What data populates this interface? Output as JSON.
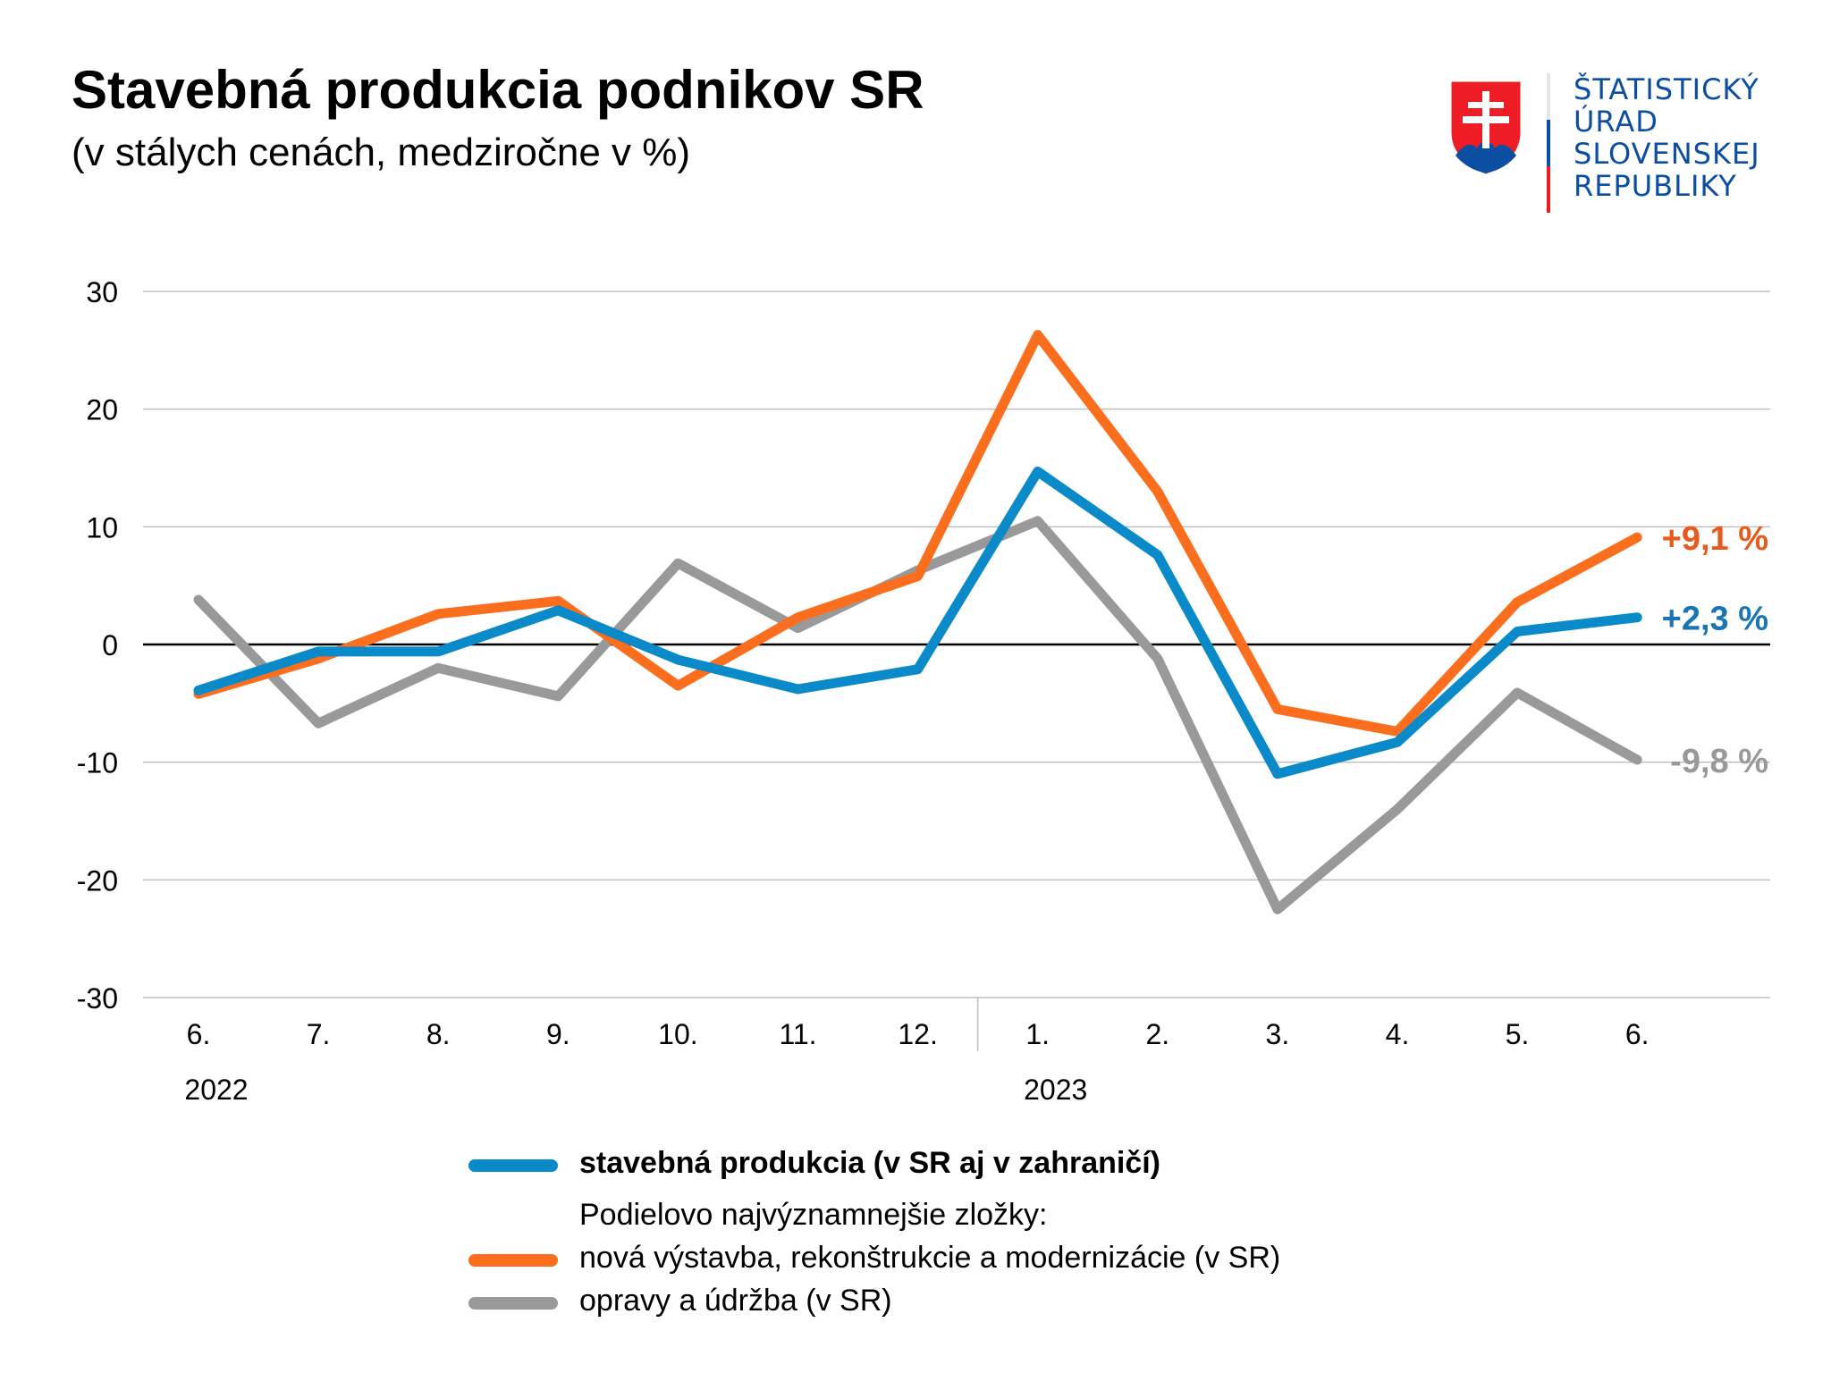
{
  "header": {
    "title": "Stavebná produkcia podnikov SR",
    "subtitle": "(v stálych cenách, medziročne v %)"
  },
  "logo": {
    "lines": [
      "ŠTATISTICKÝ",
      "ÚRAD",
      "SLOVENSKEJ",
      "REPUBLIKY"
    ],
    "text_color": "#0b4ea2",
    "bar_colors": [
      "#ffffff",
      "#0b4ea2",
      "#ee1c25"
    ]
  },
  "chart_data": {
    "type": "line",
    "categories": [
      "6.",
      "7.",
      "8.",
      "9.",
      "10.",
      "11.",
      "12.",
      "1.",
      "2.",
      "3.",
      "4.",
      "5.",
      "6."
    ],
    "year_labels": [
      {
        "label": "2022",
        "at_index": 0
      },
      {
        "label": "2023",
        "at_index": 7
      }
    ],
    "ylim": [
      -30,
      30
    ],
    "yticks": [
      30,
      20,
      10,
      0,
      -10,
      -20,
      -30
    ],
    "grid": true,
    "zero_line": true,
    "series": [
      {
        "name": "opravy a údržba (v SR)",
        "color": "#999999",
        "values": [
          3.8,
          -6.7,
          -2.0,
          -4.4,
          6.9,
          1.4,
          6.3,
          10.5,
          -1.2,
          -22.5,
          -14.0,
          -4.1,
          -9.8
        ],
        "end_label": "-9,8 %"
      },
      {
        "name": "nová výstavba, rekonštrukcie a modernizácie (v SR)",
        "color": "#fa6e1e",
        "values": [
          -4.2,
          -1.2,
          2.6,
          3.7,
          -3.5,
          2.3,
          5.8,
          26.3,
          13.0,
          -5.5,
          -7.4,
          3.6,
          9.1
        ],
        "end_label": "+9,1 %"
      },
      {
        "name": "stavebná produkcia (v SR aj v zahraničí)",
        "color": "#0b8ac9",
        "values": [
          -3.9,
          -0.6,
          -0.6,
          2.9,
          -1.3,
          -3.8,
          -2.1,
          14.7,
          7.6,
          -11.0,
          -8.3,
          1.1,
          2.3
        ],
        "end_label": "+2,3 %"
      }
    ],
    "end_label_colors": {
      "stavebna": "#1c75b3",
      "nova": "#e85a1c",
      "opravy": "#999999"
    }
  },
  "legend": {
    "main": {
      "label": "stavebná produkcia (v SR aj v zahraničí)",
      "color": "#0b8ac9"
    },
    "components_heading": "Podielovo najvýznamnejšie zložky:",
    "items": [
      {
        "label": "nová výstavba, rekonštrukcie a modernizácie (v SR)",
        "color": "#fa6e1e"
      },
      {
        "label": "opravy a údržba (v SR)",
        "color": "#999999"
      }
    ]
  }
}
